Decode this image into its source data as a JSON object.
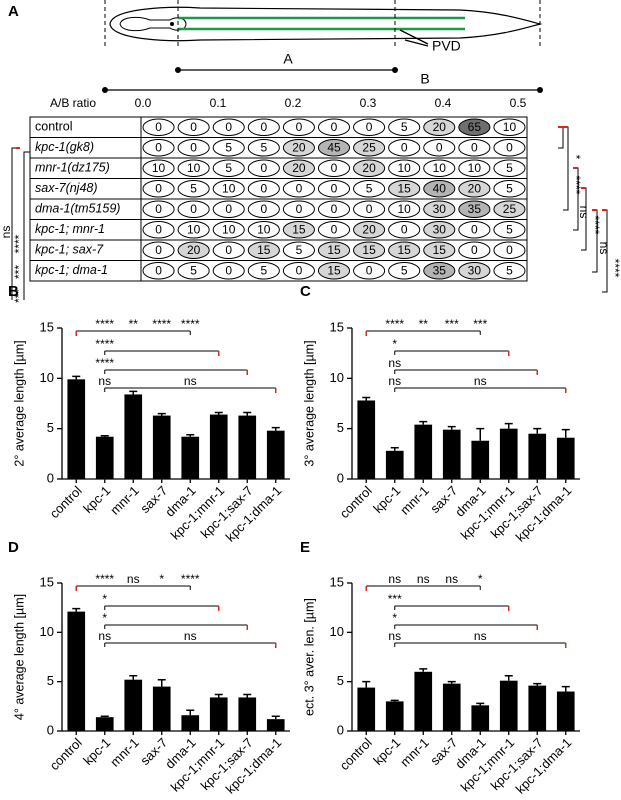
{
  "panel_a": {
    "label": "A",
    "diagram": {
      "segment_a": "A",
      "segment_b": "B",
      "neuron": "PVD"
    },
    "table": {
      "axis_label": "A/B ratio",
      "xlim": [
        0,
        0.5
      ],
      "ticks": [
        {
          "value": 0,
          "label": "0.0"
        },
        0.1,
        0.2,
        0.3,
        0.4,
        0.5
      ],
      "rows": [
        {
          "name": "control",
          "values": [
            0,
            0,
            0,
            0,
            0,
            0,
            0,
            5,
            20,
            65,
            10
          ]
        },
        {
          "name": "kpc-1(gk8)",
          "values": [
            0,
            0,
            5,
            5,
            20,
            45,
            25,
            0,
            0,
            0,
            0
          ]
        },
        {
          "name": "mnr-1(dz175)",
          "values": [
            10,
            10,
            5,
            0,
            20,
            0,
            20,
            10,
            10,
            10,
            5
          ]
        },
        {
          "name": "sax-7(nj48)",
          "values": [
            0,
            5,
            10,
            0,
            0,
            0,
            5,
            15,
            40,
            20,
            5
          ]
        },
        {
          "name": "dma-1(tm5159)",
          "values": [
            0,
            0,
            0,
            0,
            0,
            0,
            0,
            10,
            30,
            35,
            25
          ]
        },
        {
          "name": "kpc-1; mnr-1",
          "values": [
            0,
            10,
            10,
            10,
            15,
            0,
            20,
            0,
            30,
            0,
            5
          ]
        },
        {
          "name": "kpc-1; sax-7",
          "values": [
            0,
            20,
            0,
            15,
            5,
            15,
            15,
            15,
            15,
            0,
            0
          ]
        },
        {
          "name": "kpc-1; dma-1",
          "values": [
            0,
            5,
            0,
            5,
            0,
            15,
            0,
            5,
            35,
            30,
            5
          ]
        }
      ]
    },
    "significance_left": [
      "ns",
      "***",
      "***",
      "****"
    ],
    "significance_right": [
      "*",
      "****",
      "ns",
      "****",
      "ns",
      "****"
    ]
  },
  "chart_data": [
    {
      "type": "bar",
      "label": "B",
      "ylabel": "2° average length [µm]",
      "categories": [
        "control",
        "kpc-1",
        "mnr-1",
        "sax-7",
        "dma-1",
        "kpc-1;mnr-1",
        "kpc-1;sax-7",
        "kpc-1;dma-1"
      ],
      "values": [
        9.9,
        4.2,
        8.4,
        6.3,
        4.2,
        6.4,
        6.3,
        4.8
      ],
      "errors": [
        0.3,
        0.1,
        0.3,
        0.2,
        0.2,
        0.2,
        0.3,
        0.3
      ],
      "color": "#000000",
      "ylim": [
        0,
        15
      ],
      "yticks": [
        0,
        5,
        10,
        15
      ],
      "annotations": [
        [
          "****",
          "**",
          "****",
          "****"
        ],
        [
          "****"
        ],
        [
          "****"
        ],
        [
          "ns",
          "ns"
        ]
      ]
    },
    {
      "type": "bar",
      "label": "C",
      "ylabel": "3° average length [µm]",
      "categories": [
        "control",
        "kpc-1",
        "mnr-1",
        "sax-7",
        "dma-1",
        "kpc-1;mnr-1",
        "kpc-1;sax-7",
        "kpc-1;dma-1"
      ],
      "values": [
        7.8,
        2.8,
        5.4,
        4.9,
        3.8,
        5.0,
        4.5,
        4.1
      ],
      "errors": [
        0.3,
        0.3,
        0.3,
        0.3,
        1.2,
        0.5,
        0.5,
        0.8
      ],
      "color": "#000000",
      "ylim": [
        0,
        15
      ],
      "yticks": [
        0,
        5,
        10,
        15
      ],
      "annotations": [
        [
          "****",
          "**",
          "***",
          "***"
        ],
        [
          "*"
        ],
        [
          "ns"
        ],
        [
          "ns",
          "ns"
        ]
      ]
    },
    {
      "type": "bar",
      "label": "D",
      "ylabel": "4° average length [µm]",
      "categories": [
        "control",
        "kpc-1",
        "mnr-1",
        "sax-7",
        "dma-1",
        "kpc-1;mnr-1",
        "kpc-1;sax-7",
        "kpc-1;dma-1"
      ],
      "values": [
        12.1,
        1.4,
        5.2,
        4.5,
        1.6,
        3.4,
        3.4,
        1.2
      ],
      "errors": [
        0.3,
        0.1,
        0.4,
        0.7,
        0.5,
        0.3,
        0.3,
        0.3
      ],
      "color": "#000000",
      "ylim": [
        0,
        15
      ],
      "yticks": [
        0,
        5,
        10,
        15
      ],
      "annotations": [
        [
          "****",
          "ns",
          "*",
          "****"
        ],
        [
          "*"
        ],
        [
          "*"
        ],
        [
          "ns",
          "ns"
        ]
      ]
    },
    {
      "type": "bar",
      "label": "E",
      "ylabel": "ect. 3° aver. len. [µm]",
      "categories": [
        "control",
        "kpc-1",
        "mnr-1",
        "sax-7",
        "dma-1",
        "kpc-1;mnr-1",
        "kpc-1;sax-7",
        "kpc-1;dma-1"
      ],
      "values": [
        4.4,
        3.0,
        6.0,
        4.8,
        2.6,
        5.1,
        4.6,
        4.0
      ],
      "errors": [
        0.6,
        0.1,
        0.3,
        0.2,
        0.2,
        0.5,
        0.2,
        0.5
      ],
      "color": "#000000",
      "ylim": [
        0,
        15
      ],
      "yticks": [
        0,
        5,
        10,
        15
      ],
      "annotations": [
        [
          "ns",
          "ns",
          "ns",
          "*"
        ],
        [
          "***"
        ],
        [
          "*"
        ],
        [
          "ns",
          "ns"
        ]
      ]
    }
  ]
}
